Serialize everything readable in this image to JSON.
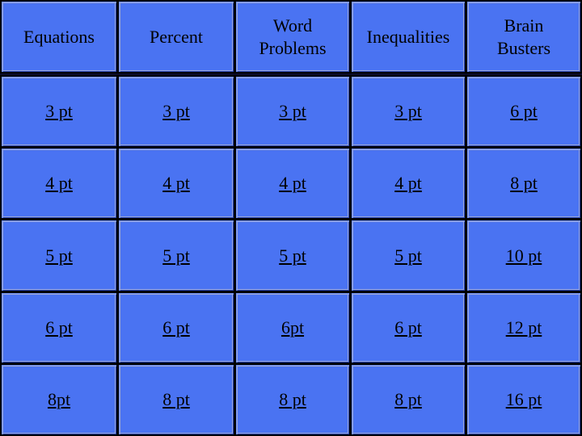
{
  "board": {
    "categories": [
      "Equations",
      "Percent",
      "Word\nProblems",
      "Inequalities",
      "Brain\nBusters"
    ],
    "rows": [
      [
        "3 pt",
        "3 pt",
        "3 pt",
        "3 pt",
        "6 pt"
      ],
      [
        "4 pt",
        "4 pt",
        "4 pt",
        "4 pt",
        "8 pt"
      ],
      [
        "5 pt",
        "5 pt",
        "5 pt",
        "5 pt",
        "10 pt"
      ],
      [
        "6 pt",
        "6 pt",
        "6pt",
        "6 pt",
        "12 pt"
      ],
      [
        "8pt",
        "8 pt",
        "8 pt",
        "8 pt",
        "16 pt"
      ]
    ]
  },
  "colors": {
    "tile": "#4a73f2",
    "border": "#000000",
    "text": "#000000"
  }
}
